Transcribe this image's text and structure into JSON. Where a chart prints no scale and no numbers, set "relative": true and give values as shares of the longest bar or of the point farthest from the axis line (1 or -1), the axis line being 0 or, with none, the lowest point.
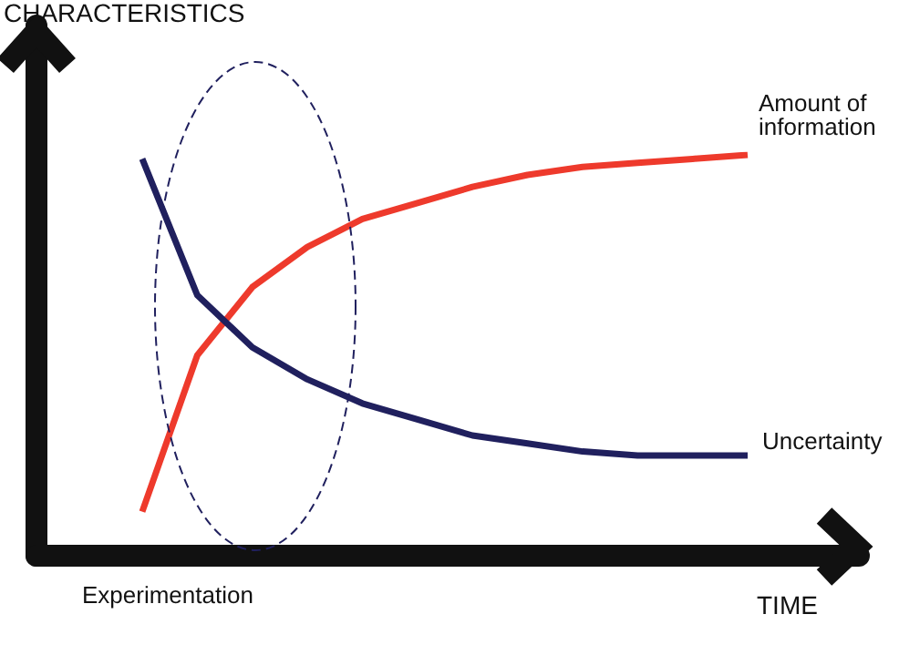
{
  "chart_data": {
    "type": "line",
    "relative": true,
    "xlabel": "TIME",
    "ylabel": "CHARACTERISTICS",
    "annotations": [
      "Experimentation"
    ],
    "categories": [
      null,
      null,
      null,
      null,
      null,
      null,
      null,
      null,
      null,
      null,
      null,
      null
    ],
    "marker": "none",
    "legend": false,
    "series": [
      {
        "name": "Amount of information",
        "color": "#ee3a2c",
        "values": [
          0.11,
          0.5,
          0.67,
          0.77,
          0.84,
          0.88,
          0.92,
          0.95,
          0.97,
          0.98,
          0.99,
          1.0
        ]
      },
      {
        "name": "Uncertainty",
        "color": "#20205e",
        "values": [
          0.99,
          0.65,
          0.52,
          0.44,
          0.38,
          0.34,
          0.3,
          0.28,
          0.26,
          0.25,
          0.25,
          0.25
        ]
      }
    ]
  }
}
